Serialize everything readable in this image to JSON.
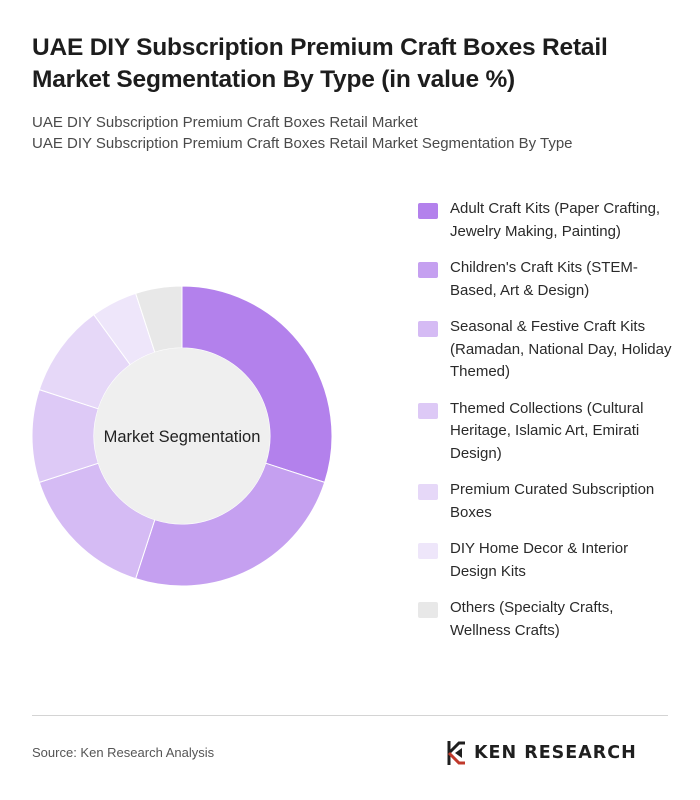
{
  "header": {
    "title": "UAE DIY Subscription Premium Craft Boxes Retail Market Segmentation By Type (in value %)",
    "subtitle_line1": "UAE DIY Subscription Premium Craft Boxes Retail Market",
    "subtitle_line2": "UAE DIY Subscription Premium Craft Boxes Retail Market Segmentation By Type"
  },
  "chart_data": {
    "type": "pie",
    "center_label": "Market Segmentation",
    "categories": [
      "Adult Craft Kits (Paper Crafting, Jewelry Making, Painting)",
      "Children's Craft Kits (STEM-Based, Art & Design)",
      "Seasonal & Festive Craft Kits (Ramadan, National Day, Holiday Themed)",
      "Themed Collections (Cultural Heritage, Islamic Art, Emirati Design)",
      "Premium Curated Subscription Boxes",
      "DIY Home Decor & Interior Design Kits",
      "Others (Specialty Crafts, Wellness Crafts)"
    ],
    "values": [
      30,
      25,
      15,
      10,
      10,
      5,
      5
    ],
    "colors": [
      "#b381ec",
      "#c5a0f0",
      "#d5bbf4",
      "#ddc9f6",
      "#e6d8f8",
      "#eee6fa",
      "#e8e8e8"
    ]
  },
  "footer": {
    "source": "Source: Ken Research Analysis",
    "logo_text": "KEN RESEARCH"
  }
}
